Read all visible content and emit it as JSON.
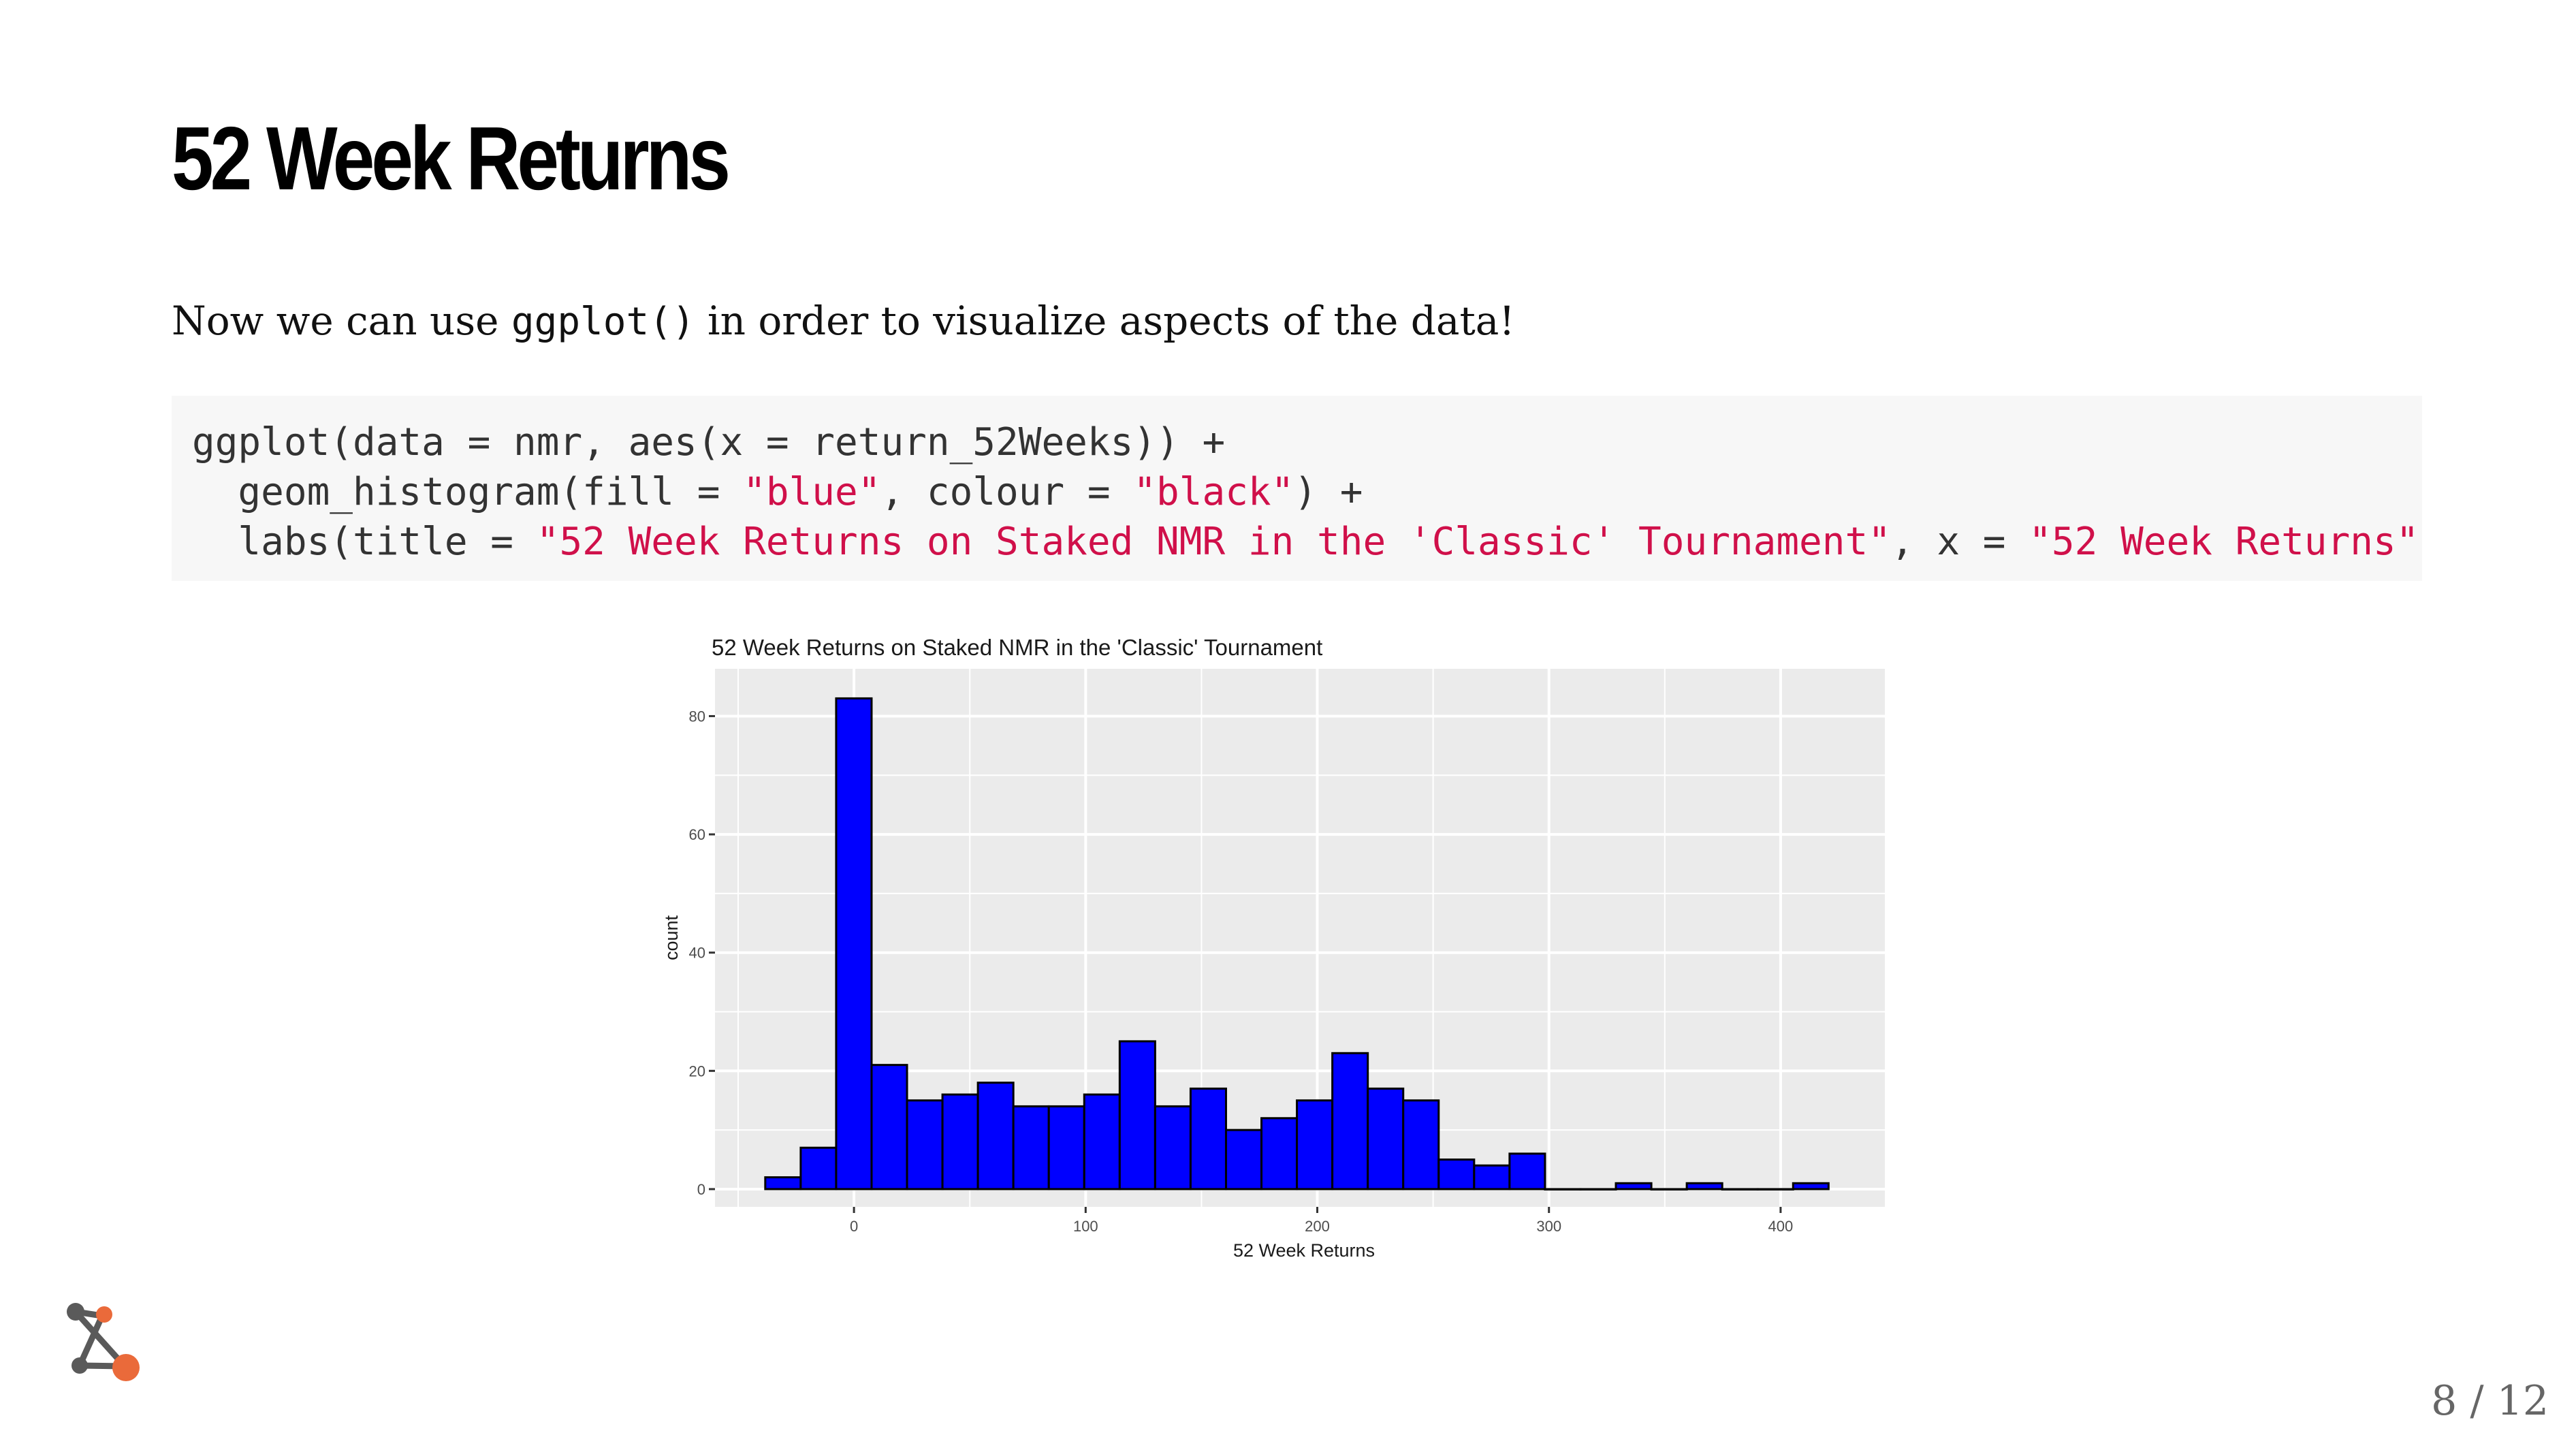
{
  "slide": {
    "title": "52 Week Returns",
    "intro_before": "Now we can use ",
    "intro_code": "ggplot()",
    "intro_after": " in order to visualize aspects of the data!",
    "page_number": "8 / 12"
  },
  "code": {
    "line1": "ggplot(data = nmr, aes(x = return_52Weeks)) +",
    "line2_a": "  geom_histogram(fill = ",
    "line2_s1": "\"blue\"",
    "line2_b": ", colour = ",
    "line2_s2": "\"black\"",
    "line2_c": ") +",
    "line3_a": "  labs(title = ",
    "line3_s1": "\"52 Week Returns on Staked NMR in the 'Classic' Tournament\"",
    "line3_b": ", x = ",
    "line3_s2": "\"52 Week Returns\""
  },
  "colors": {
    "bar_fill": "#0000ff",
    "bar_stroke": "#000000",
    "panel_bg": "#ebebeb",
    "grid": "#ffffff",
    "code_string": "#d0104a",
    "code_bg": "#f7f7f7"
  },
  "chart_data": {
    "type": "bar",
    "title": "52 Week Returns on Staked NMR in the 'Classic' Tournament",
    "xlabel": "52 Week Returns",
    "ylabel": "count",
    "xlim": [
      -60,
      445
    ],
    "ylim": [
      -3,
      88
    ],
    "xticks": [
      0,
      100,
      200,
      300,
      400
    ],
    "yticks": [
      0,
      20,
      40,
      60,
      80
    ],
    "grid": true,
    "bin_width": 15.3,
    "bin_start": -38.3,
    "values": [
      2,
      7,
      83,
      21,
      15,
      16,
      18,
      14,
      14,
      16,
      25,
      14,
      17,
      10,
      12,
      15,
      23,
      17,
      15,
      5,
      4,
      6,
      0,
      0,
      1,
      0,
      1,
      0,
      0,
      1
    ]
  }
}
